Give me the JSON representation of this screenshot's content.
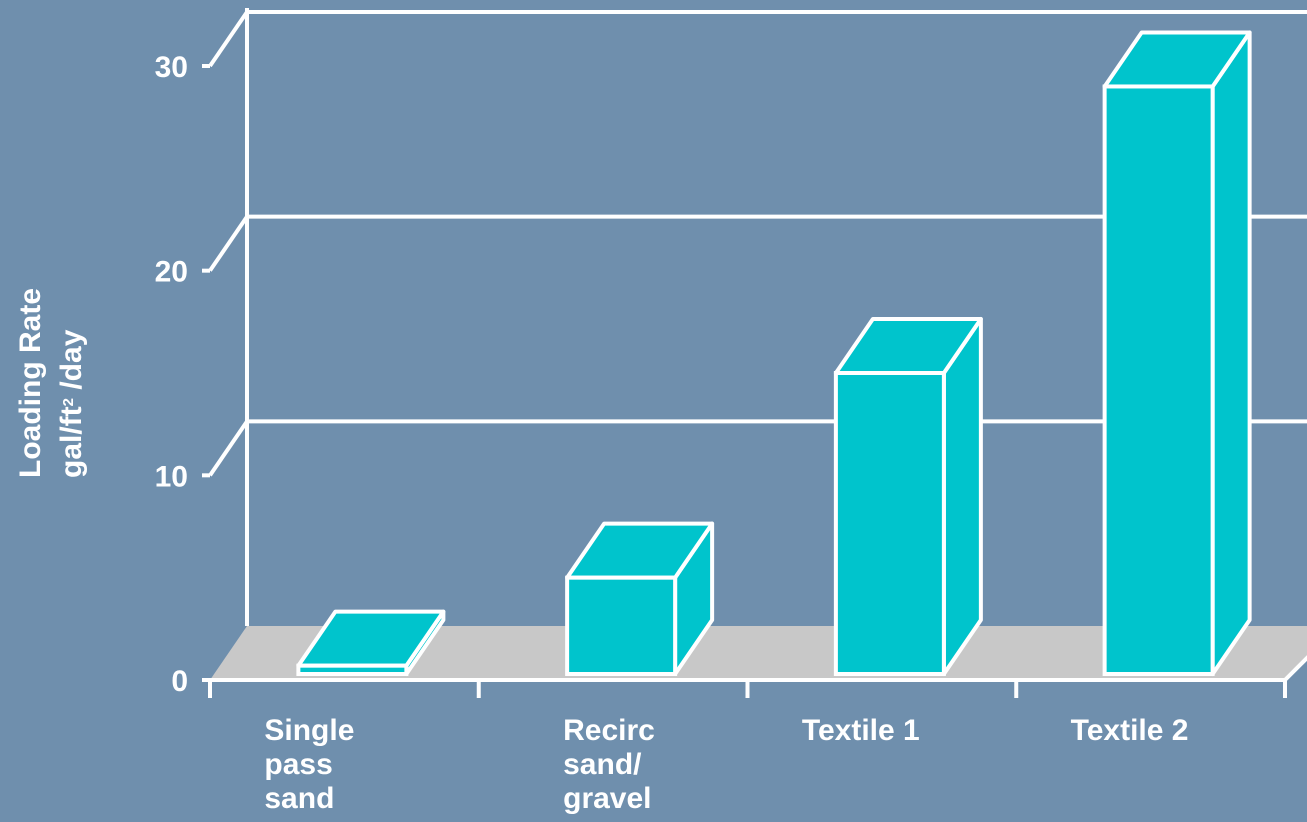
{
  "chart_data": {
    "type": "bar",
    "style": "3d",
    "categories": [
      [
        "Single",
        "pass",
        "sand"
      ],
      [
        "Recirc",
        "sand/",
        "gravel"
      ],
      [
        "Textile 1"
      ],
      [
        "Textile 2"
      ]
    ],
    "values": [
      0.7,
      5,
      15,
      29
    ],
    "ylabel_line1": "Loading Rate",
    "ylabel_line2": "gal/ft",
    "ylabel_sup": "2",
    "ylabel_line2_suffix": " /day",
    "yticks": [
      "0",
      "10",
      "20",
      "30"
    ],
    "ylim": [
      0,
      30
    ],
    "grid": true,
    "colors": {
      "background": "#6f8fad",
      "bar": "#00c4cc",
      "floor": "#c8c8c8",
      "lines": "#ffffff"
    }
  }
}
